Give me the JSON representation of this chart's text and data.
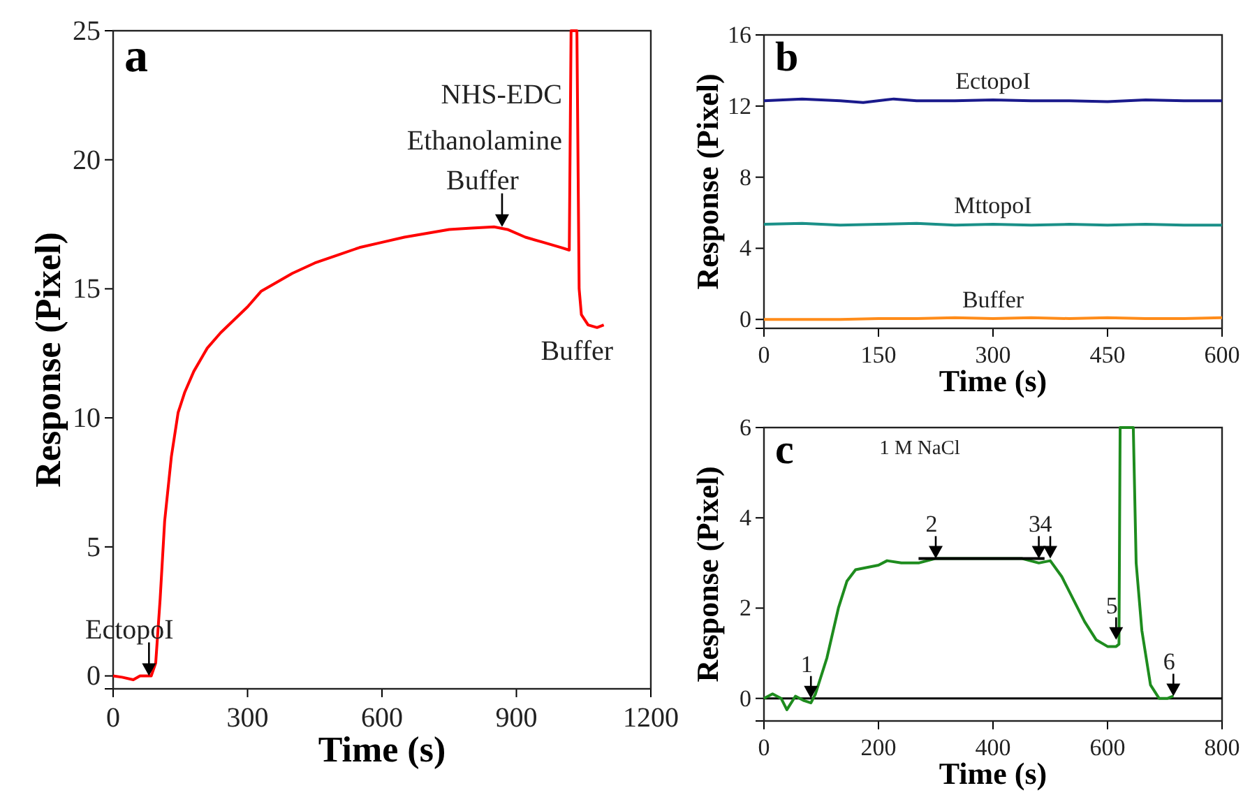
{
  "chart_data": [
    {
      "type": "line",
      "title": "a",
      "xlabel": "Time (s)",
      "ylabel": "Response (Pixel)",
      "xlim": [
        0,
        1200
      ],
      "ylim": [
        -0.5,
        25
      ],
      "xticks": [
        0,
        300,
        600,
        900,
        1200
      ],
      "yticks": [
        0,
        5,
        10,
        15,
        20,
        25
      ],
      "series": [
        {
          "color": "#ff0000",
          "x": [
            0,
            20,
            45,
            60,
            85,
            95,
            105,
            115,
            130,
            145,
            160,
            180,
            210,
            240,
            270,
            300,
            330,
            360,
            400,
            450,
            500,
            550,
            600,
            650,
            700,
            750,
            800,
            850,
            880,
            920,
            960,
            1000,
            1018,
            1022,
            1035,
            1040,
            1045,
            1060,
            1080,
            1095
          ],
          "values": [
            0,
            -0.05,
            -0.15,
            0,
            0,
            0.5,
            3,
            6,
            8.5,
            10.2,
            11,
            11.8,
            12.7,
            13.3,
            13.8,
            14.3,
            14.9,
            15.2,
            15.6,
            16,
            16.3,
            16.6,
            16.8,
            17,
            17.15,
            17.3,
            17.35,
            17.4,
            17.3,
            17,
            16.8,
            16.6,
            16.5,
            25,
            25,
            15,
            14,
            13.6,
            13.5,
            13.6
          ]
        }
      ],
      "annotations": [
        {
          "text": "EctopoI",
          "x": 80,
          "y": 0
        },
        {
          "text": "Buffer",
          "x": 868,
          "y": 17.4
        },
        "NHS-EDC",
        "Ethanolamine",
        "Buffer"
      ]
    },
    {
      "type": "line",
      "title": "b",
      "xlabel": "Time (s)",
      "ylabel": "Response (Pixel)",
      "xlim": [
        0,
        600
      ],
      "ylim": [
        -0.5,
        16
      ],
      "xticks": [
        0,
        150,
        300,
        450,
        600
      ],
      "yticks": [
        0,
        4,
        8,
        12,
        16
      ],
      "series": [
        {
          "name": "EctopoI",
          "color": "#1a1a8c",
          "x": [
            0,
            50,
            100,
            130,
            170,
            200,
            250,
            300,
            350,
            400,
            450,
            500,
            550,
            600
          ],
          "values": [
            12.3,
            12.4,
            12.3,
            12.2,
            12.4,
            12.3,
            12.3,
            12.35,
            12.3,
            12.3,
            12.25,
            12.35,
            12.3,
            12.3
          ]
        },
        {
          "name": "MttopoI",
          "color": "#1a9088",
          "x": [
            0,
            50,
            100,
            150,
            200,
            250,
            300,
            350,
            400,
            450,
            500,
            550,
            600
          ],
          "values": [
            5.35,
            5.4,
            5.3,
            5.35,
            5.4,
            5.3,
            5.35,
            5.3,
            5.35,
            5.3,
            5.35,
            5.3,
            5.3
          ]
        },
        {
          "name": "Buffer",
          "color": "#ff8c1a",
          "x": [
            0,
            50,
            100,
            150,
            200,
            250,
            300,
            350,
            400,
            450,
            500,
            550,
            600
          ],
          "values": [
            0,
            0,
            0,
            0.05,
            0.05,
            0.1,
            0.05,
            0.1,
            0.05,
            0.1,
            0.05,
            0.05,
            0.1
          ]
        }
      ]
    },
    {
      "type": "line",
      "title": "c",
      "xlabel": "Time (s)",
      "ylabel": "Response (Pixel)",
      "xlim": [
        0,
        800
      ],
      "ylim": [
        -0.5,
        6
      ],
      "xticks": [
        0,
        200,
        400,
        600,
        800
      ],
      "yticks": [
        0,
        2,
        4,
        6
      ],
      "series": [
        {
          "color": "#1e8c1e",
          "x": [
            0,
            15,
            30,
            40,
            55,
            70,
            82,
            90,
            110,
            130,
            145,
            160,
            180,
            200,
            215,
            240,
            270,
            300,
            350,
            400,
            450,
            480,
            500,
            520,
            540,
            560,
            580,
            600,
            615,
            620,
            622,
            645,
            650,
            660,
            675,
            690,
            705,
            715
          ],
          "values": [
            0,
            0.1,
            0,
            -0.25,
            0.05,
            -0.05,
            -0.1,
            0.1,
            0.9,
            2,
            2.6,
            2.85,
            2.9,
            2.95,
            3.05,
            3,
            3,
            3.1,
            3.1,
            3.1,
            3.1,
            3,
            3.05,
            2.7,
            2.2,
            1.7,
            1.3,
            1.15,
            1.15,
            1.2,
            6,
            6,
            3,
            1.5,
            0.3,
            0,
            0,
            0.05
          ]
        },
        {
          "type": "line",
          "color": "#000000",
          "x": [
            270,
            490
          ],
          "values": [
            3.1,
            3.1
          ]
        }
      ],
      "ref_lines": [
        {
          "axis": "y",
          "value": 0,
          "color": "#000000"
        }
      ],
      "annotations": [
        {
          "text": "1",
          "x": 82,
          "y": 0
        },
        {
          "text": "2",
          "x": 300,
          "y": 3.1
        },
        {
          "text": "3",
          "x": 480,
          "y": 3.1
        },
        {
          "text": "4",
          "x": 500,
          "y": 3.1
        },
        {
          "text": "5",
          "x": 615,
          "y": 1.3
        },
        {
          "text": "6",
          "x": 715,
          "y": 0.05
        },
        "1 M NaCl"
      ]
    }
  ]
}
